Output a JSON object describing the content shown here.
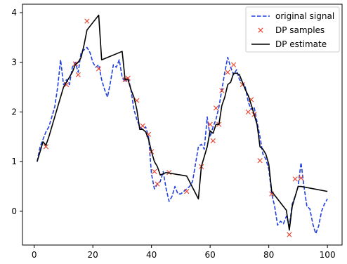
{
  "chart_data": {
    "type": "line",
    "title": "",
    "xlabel": "",
    "ylabel": "",
    "xlim": [
      -4,
      105
    ],
    "ylim": [
      -0.68,
      4.17
    ],
    "xticks": [
      0,
      20,
      40,
      60,
      80,
      100
    ],
    "yticks": [
      0,
      1,
      2,
      3,
      4
    ],
    "grid": false,
    "legend_position": "top-right",
    "series": [
      {
        "name": "original signal",
        "kind": "line",
        "style": "dashed",
        "color": "#1f3fe0",
        "x": [
          1,
          2,
          3,
          4,
          5,
          6,
          7,
          8,
          9,
          10,
          11,
          12,
          13,
          14,
          15,
          16,
          17,
          18,
          19,
          20,
          21,
          22,
          23,
          24,
          25,
          26,
          27,
          28,
          29,
          30,
          31,
          32,
          33,
          34,
          35,
          36,
          37,
          38,
          39,
          40,
          41,
          42,
          43,
          44,
          45,
          46,
          47,
          48,
          49,
          50,
          51,
          52,
          53,
          54,
          55,
          56,
          57,
          58,
          59,
          60,
          61,
          62,
          63,
          64,
          65,
          66,
          67,
          68,
          69,
          70,
          71,
          72,
          73,
          74,
          75,
          76,
          77,
          78,
          79,
          80,
          81,
          82,
          83,
          84,
          85,
          86,
          87,
          88,
          89,
          90,
          91,
          92,
          93,
          94,
          95,
          96,
          97,
          98,
          99,
          100
        ],
        "y": [
          1.0,
          1.3,
          1.45,
          1.6,
          1.7,
          1.9,
          2.1,
          2.5,
          3.05,
          2.55,
          2.65,
          2.55,
          2.9,
          3.0,
          2.8,
          3.2,
          3.25,
          3.3,
          3.2,
          3.0,
          2.9,
          2.95,
          2.65,
          2.45,
          2.3,
          2.6,
          2.95,
          2.9,
          3.05,
          2.7,
          2.6,
          2.7,
          2.45,
          2.05,
          1.85,
          1.7,
          1.65,
          1.7,
          1.5,
          0.75,
          0.45,
          0.55,
          0.6,
          0.8,
          0.45,
          0.2,
          0.3,
          0.5,
          0.35,
          0.35,
          0.4,
          0.45,
          0.5,
          0.6,
          0.95,
          1.3,
          1.35,
          1.25,
          1.9,
          1.5,
          1.7,
          1.85,
          2.1,
          2.45,
          2.8,
          3.1,
          2.9,
          2.75,
          2.85,
          2.65,
          2.6,
          2.5,
          2.2,
          2.05,
          2.1,
          1.8,
          1.5,
          1.15,
          1.05,
          0.85,
          0.35,
          0.1,
          -0.28,
          -0.2,
          -0.25,
          -0.1,
          -0.3,
          0.15,
          0.3,
          0.5,
          0.98,
          0.5,
          0.1,
          0.05,
          -0.25,
          -0.45,
          -0.3,
          0.0,
          0.15,
          0.25
        ]
      },
      {
        "name": "DP samples",
        "kind": "scatter",
        "marker": "x",
        "color": "#e8402a",
        "x": [
          4,
          11,
          14,
          15,
          18,
          22,
          31,
          32,
          35,
          37,
          39,
          40,
          41,
          42,
          46,
          52,
          57,
          60,
          61,
          62,
          63,
          64,
          66,
          68,
          71,
          73,
          74,
          75,
          77,
          81,
          87,
          89,
          91
        ],
        "y": [
          1.3,
          2.55,
          2.97,
          2.75,
          3.83,
          2.87,
          2.65,
          2.68,
          2.23,
          1.72,
          1.55,
          1.2,
          0.8,
          0.55,
          0.78,
          0.4,
          0.9,
          1.75,
          1.42,
          2.08,
          1.75,
          2.43,
          2.8,
          2.95,
          2.55,
          2.0,
          2.25,
          1.95,
          1.02,
          0.35,
          -0.47,
          0.65,
          0.67
        ]
      },
      {
        "name": "DP estimate",
        "kind": "line",
        "style": "solid",
        "color": "#000000",
        "x": [
          1,
          2,
          3,
          4,
          5,
          6,
          7,
          8,
          9,
          10,
          11,
          12,
          13,
          14,
          15,
          16,
          17,
          18,
          22,
          23,
          30,
          31,
          32,
          33,
          34,
          35,
          36,
          37,
          38,
          39,
          40,
          41,
          42,
          43,
          45,
          52,
          56,
          57,
          58,
          59,
          60,
          61,
          62,
          63,
          64,
          65,
          66,
          67,
          68,
          69,
          70,
          71,
          72,
          73,
          74,
          75,
          76,
          77,
          78,
          79,
          80,
          81,
          86,
          87,
          88,
          89,
          90,
          91,
          100
        ],
        "y": [
          1.0,
          1.2,
          1.4,
          1.33,
          1.5,
          1.7,
          1.9,
          2.1,
          2.3,
          2.5,
          2.6,
          2.7,
          2.8,
          2.95,
          3.0,
          3.1,
          3.35,
          3.65,
          3.95,
          3.05,
          3.22,
          2.65,
          2.65,
          2.45,
          2.3,
          2.05,
          1.65,
          1.65,
          1.6,
          1.45,
          1.2,
          1.0,
          0.9,
          0.73,
          0.78,
          0.71,
          0.25,
          0.9,
          1.1,
          1.3,
          1.62,
          1.57,
          1.75,
          1.75,
          2.13,
          2.3,
          2.55,
          2.6,
          2.78,
          2.78,
          2.75,
          2.6,
          2.45,
          2.33,
          2.15,
          1.95,
          1.75,
          1.3,
          1.25,
          1.15,
          0.95,
          0.4,
          0.02,
          -0.38,
          0.1,
          0.3,
          0.5,
          0.5,
          0.4
        ]
      }
    ]
  }
}
